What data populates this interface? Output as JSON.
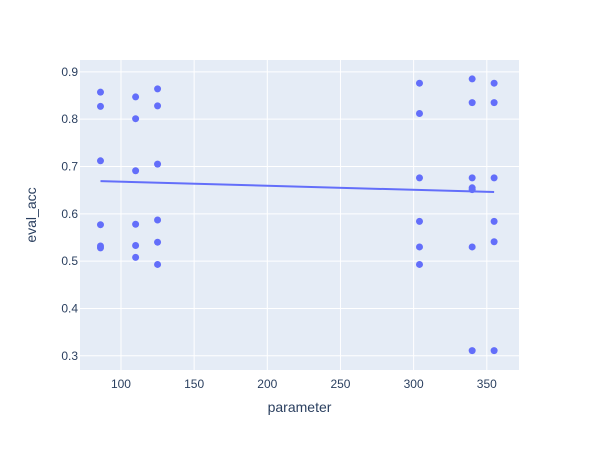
{
  "chart_data": {
    "type": "scatter",
    "title": "",
    "xlabel": "parameter",
    "ylabel": "eval_acc",
    "xlim": [
      72,
      372
    ],
    "ylim": [
      0.27,
      0.925
    ],
    "x_ticks": [
      100,
      150,
      200,
      250,
      300,
      350
    ],
    "y_ticks": [
      0.3,
      0.4,
      0.5,
      0.6,
      0.7,
      0.8,
      0.9
    ],
    "x_tick_labels": [
      "100",
      "150",
      "200",
      "250",
      "300",
      "350"
    ],
    "y_tick_labels": [
      "0.3",
      "0.4",
      "0.5",
      "0.6",
      "0.7",
      "0.8",
      "0.9"
    ],
    "grid": true,
    "colors": {
      "plot_background": "#e5ecf6",
      "grid": "#ffffff",
      "marker": "#636efa",
      "trendline": "#636efa",
      "text": "#2a3f5f"
    },
    "series": [
      {
        "mode": "markers",
        "points": [
          [
            86,
            0.857
          ],
          [
            86,
            0.827
          ],
          [
            86,
            0.712
          ],
          [
            86,
            0.577
          ],
          [
            86,
            0.532
          ],
          [
            86,
            0.528
          ],
          [
            110,
            0.847
          ],
          [
            110,
            0.801
          ],
          [
            110,
            0.691
          ],
          [
            110,
            0.578
          ],
          [
            110,
            0.533
          ],
          [
            110,
            0.508
          ],
          [
            125,
            0.864
          ],
          [
            125,
            0.828
          ],
          [
            125,
            0.705
          ],
          [
            125,
            0.587
          ],
          [
            125,
            0.54
          ],
          [
            125,
            0.493
          ],
          [
            304,
            0.876
          ],
          [
            304,
            0.812
          ],
          [
            304,
            0.676
          ],
          [
            304,
            0.584
          ],
          [
            304,
            0.53
          ],
          [
            304,
            0.493
          ],
          [
            340,
            0.885
          ],
          [
            340,
            0.835
          ],
          [
            340,
            0.676
          ],
          [
            340,
            0.655
          ],
          [
            340,
            0.651
          ],
          [
            340,
            0.53
          ],
          [
            340,
            0.311
          ],
          [
            355,
            0.876
          ],
          [
            355,
            0.835
          ],
          [
            355,
            0.676
          ],
          [
            355,
            0.584
          ],
          [
            355,
            0.541
          ],
          [
            355,
            0.311
          ]
        ]
      },
      {
        "mode": "lines",
        "points": [
          [
            86,
            0.669
          ],
          [
            355,
            0.646
          ]
        ]
      }
    ]
  }
}
